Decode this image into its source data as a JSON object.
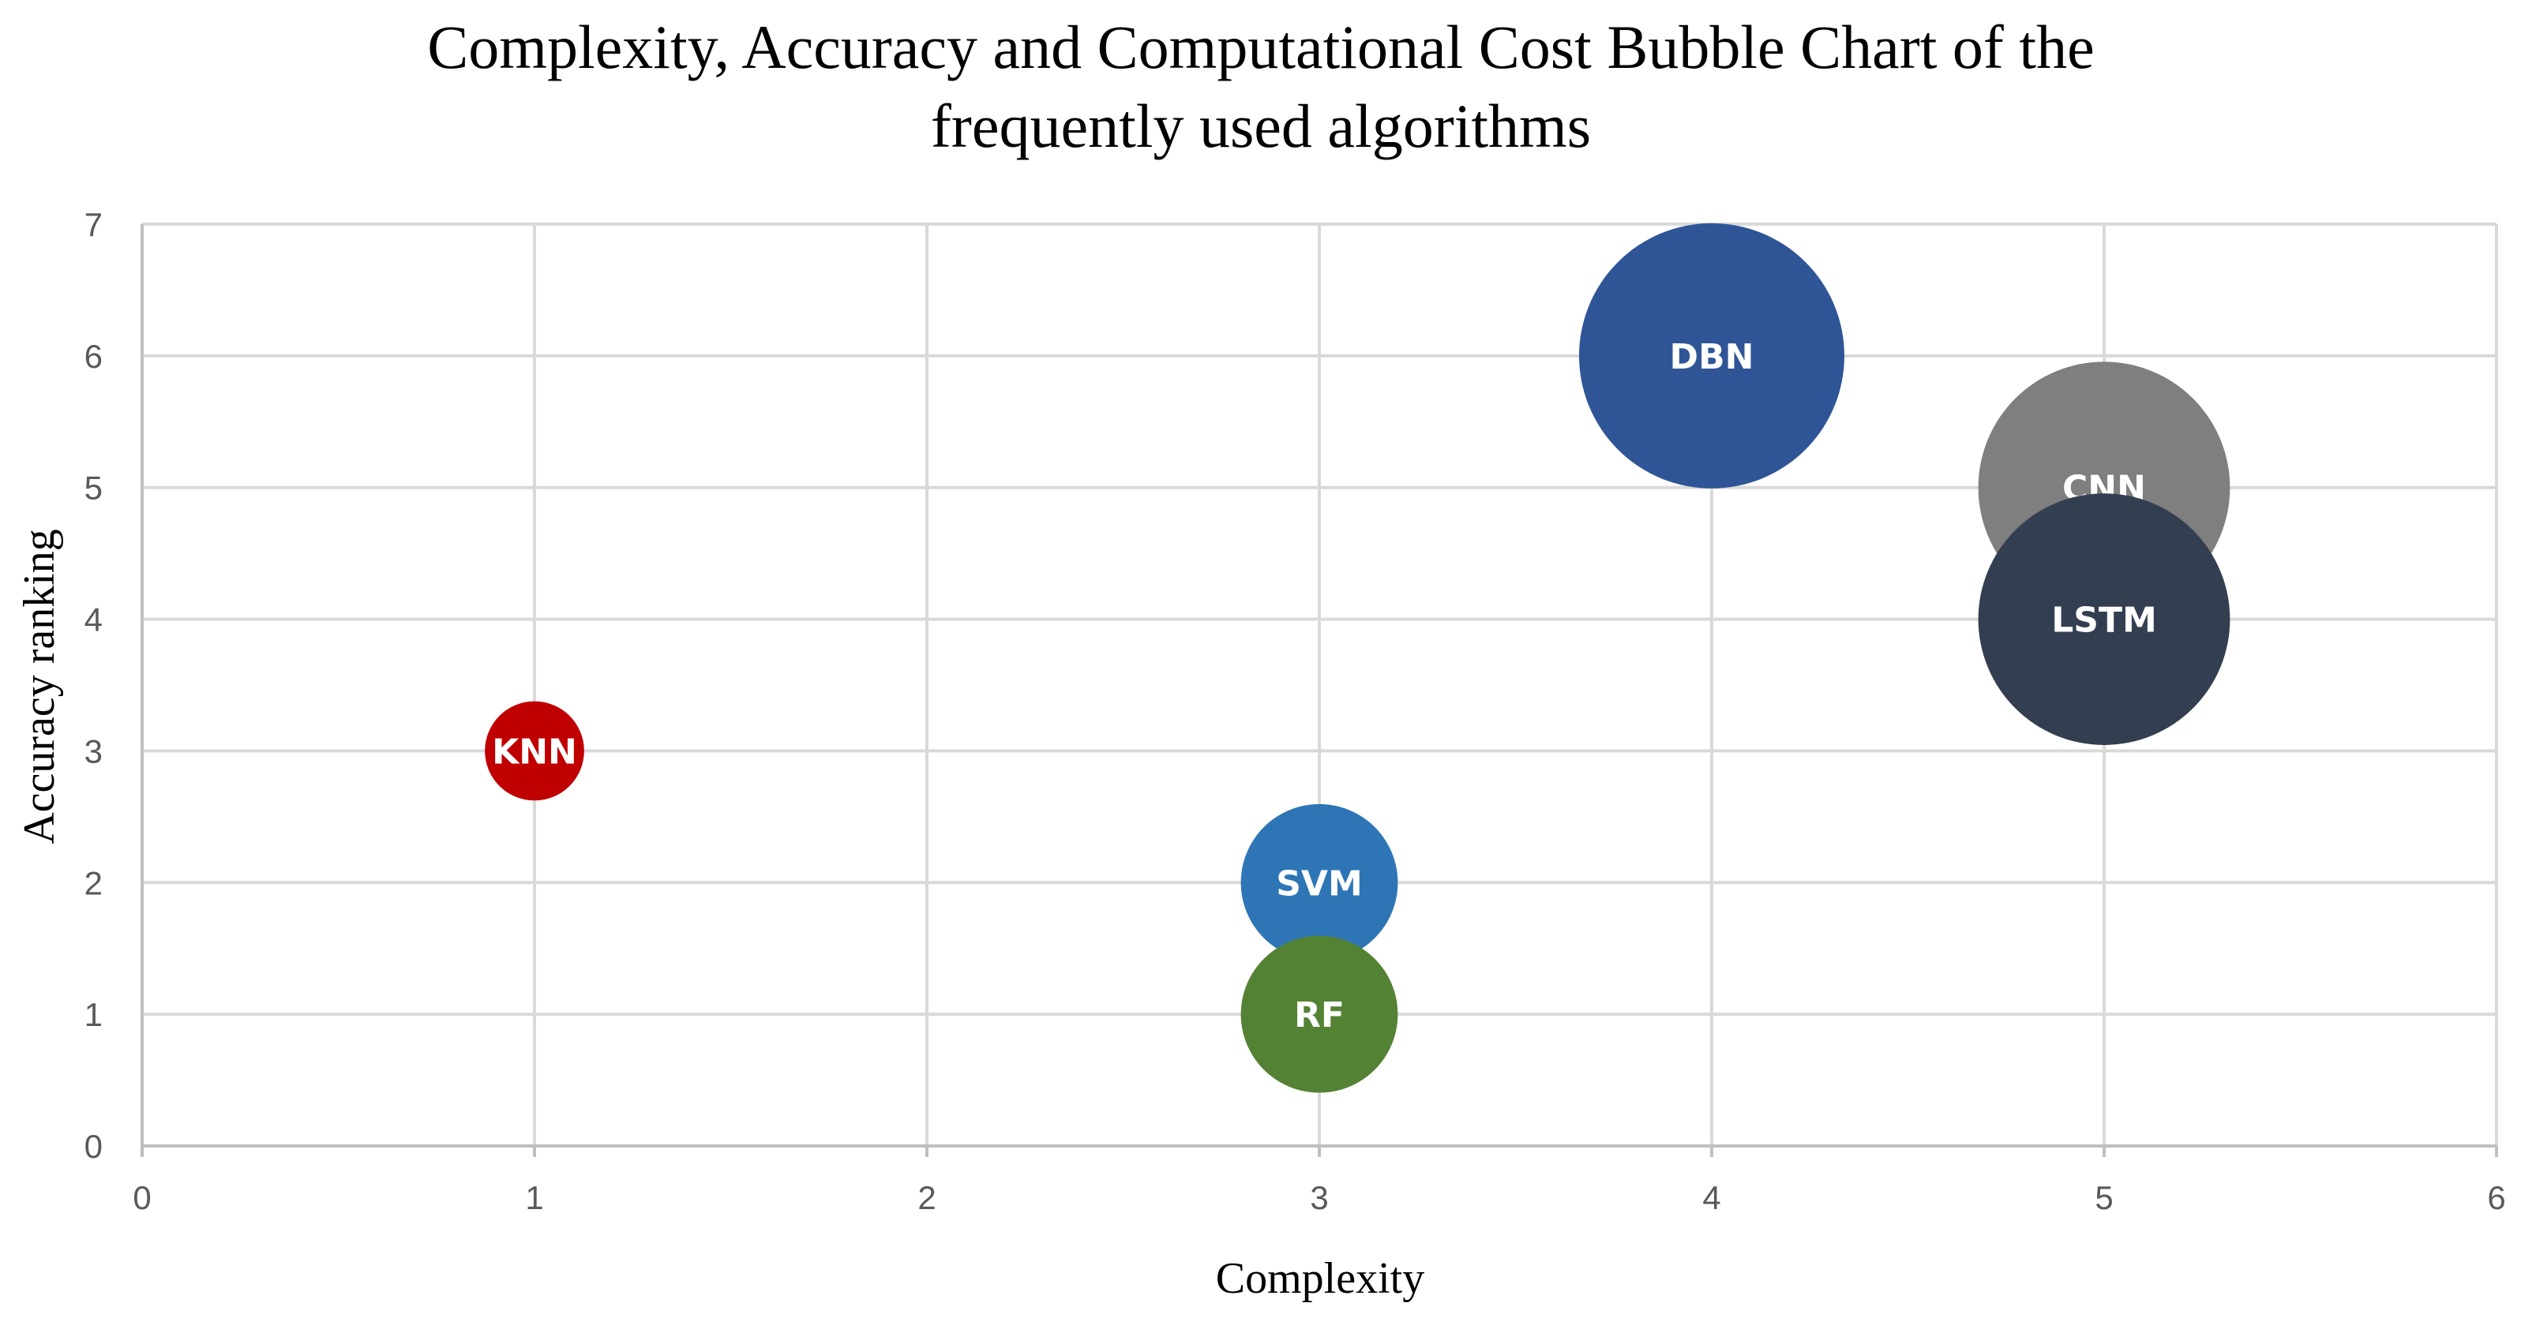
{
  "chart_data": {
    "type": "bubble",
    "title": [
      "Complexity, Accuracy and Computational Cost Bubble Chart of the",
      "frequently used algorithms"
    ],
    "xlabel": "Complexity",
    "ylabel": "Accuracy ranking",
    "xlim": [
      0,
      6
    ],
    "ylim": [
      0,
      7
    ],
    "xticks": [
      0,
      1,
      2,
      3,
      4,
      5,
      6
    ],
    "yticks": [
      0,
      1,
      2,
      3,
      4,
      5,
      6,
      7
    ],
    "grid": true,
    "size_meaning": "Computational Cost",
    "series": [
      {
        "name": "KNN",
        "x": 1,
        "y": 3,
        "size": 0.14,
        "color": "#c00000"
      },
      {
        "name": "SVM",
        "x": 3,
        "y": 2,
        "size": 0.35,
        "color": "#2e75b6"
      },
      {
        "name": "RF",
        "x": 3,
        "y": 1,
        "size": 0.35,
        "color": "#548235"
      },
      {
        "name": "DBN",
        "x": 4,
        "y": 6,
        "size": 1.0,
        "color": "#2f5597"
      },
      {
        "name": "CNN",
        "x": 5,
        "y": 5,
        "size": 0.9,
        "color": "#7f7f7f"
      },
      {
        "name": "LSTM",
        "x": 5,
        "y": 4,
        "size": 0.9,
        "color": "#333f50"
      }
    ]
  }
}
